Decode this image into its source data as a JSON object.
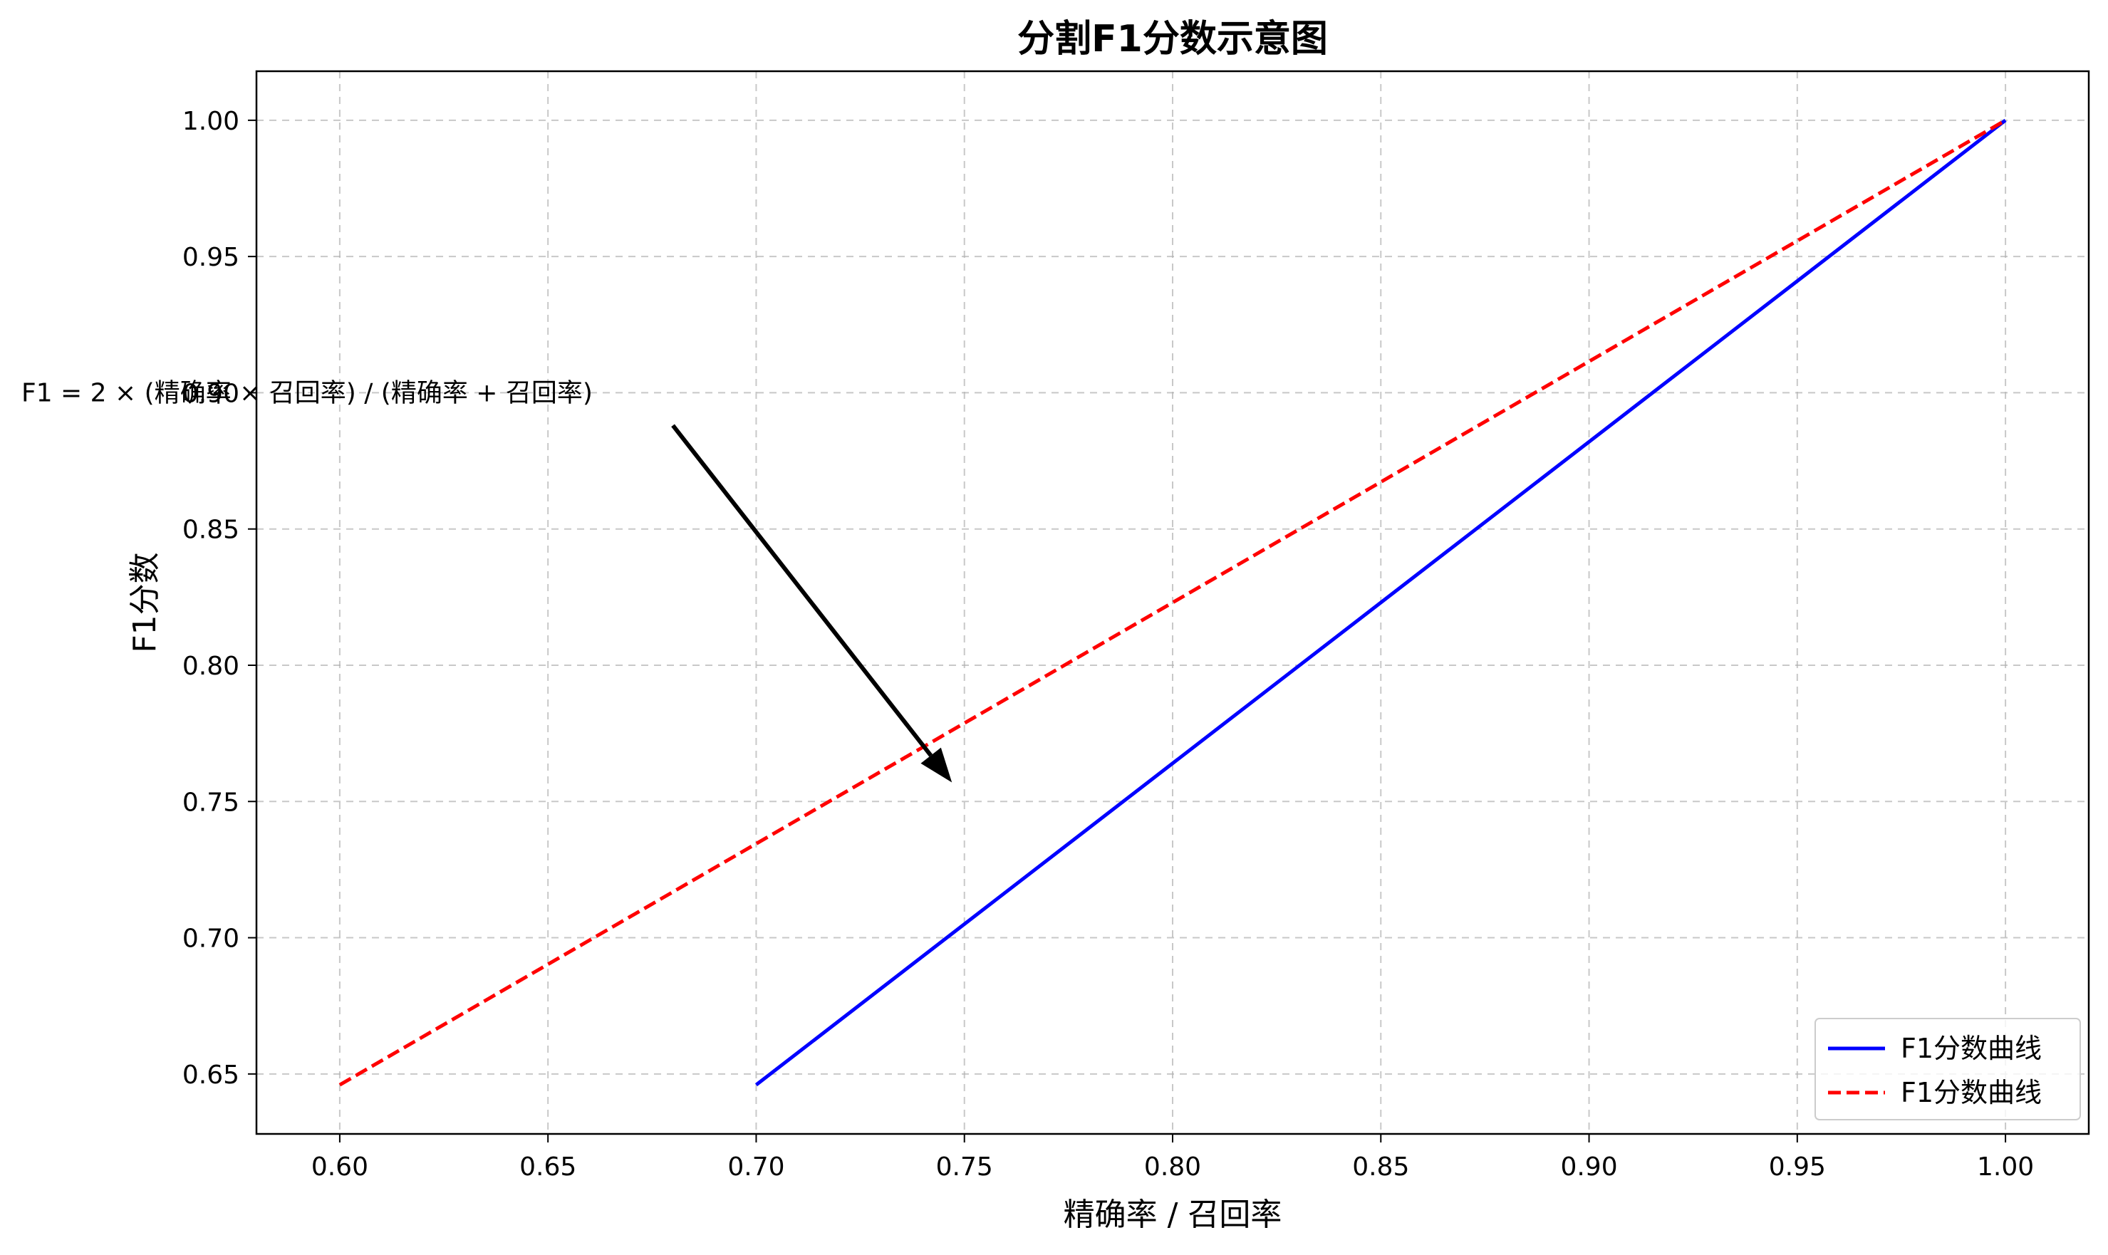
{
  "chart_data": {
    "type": "line",
    "title": "分割F1分数示意图",
    "xlabel": "精确率 / 召回率",
    "ylabel": "F1分数",
    "xlim": [
      0.58,
      1.02
    ],
    "ylim": [
      0.628,
      1.018
    ],
    "xticks": [
      0.6,
      0.65,
      0.7,
      0.75,
      0.8,
      0.85,
      0.9,
      0.95,
      1.0
    ],
    "yticks": [
      0.65,
      0.7,
      0.75,
      0.8,
      0.85,
      0.9,
      0.95,
      1.0
    ],
    "grid": true,
    "legend_position": "lower-right",
    "series": [
      {
        "name": "F1分数曲线",
        "color": "#0000ff",
        "style": "solid",
        "x": [
          0.7,
          1.0
        ],
        "y": [
          0.646,
          1.0
        ]
      },
      {
        "name": "F1分数曲线",
        "color": "#ff0000",
        "style": "dashed",
        "x": [
          0.6,
          1.0
        ],
        "y": [
          0.646,
          1.0
        ]
      }
    ],
    "annotation": {
      "text": "F1 = 2 × (精确率 × 召回率) / (精确率 + 召回率)",
      "text_anchor_x": 0.58,
      "text_anchor_y": 0.9,
      "arrow_from_x": 0.68,
      "arrow_from_y": 0.888,
      "arrow_to_x": 0.747,
      "arrow_to_y": 0.757
    }
  }
}
